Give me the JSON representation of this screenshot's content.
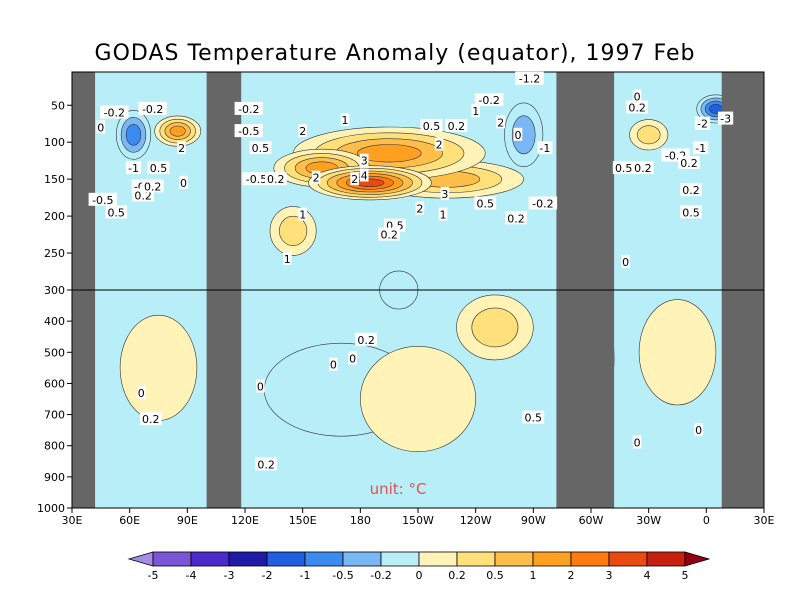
{
  "chart_data": {
    "type": "heatmap",
    "title": "GODAS Temperature Anomaly (equator), 1997 Feb",
    "unit_label": "unit: °C",
    "x_ticks": [
      "30E",
      "60E",
      "90E",
      "120E",
      "150E",
      "180",
      "150W",
      "120W",
      "90W",
      "60W",
      "30W",
      "0",
      "30E"
    ],
    "x_range_deg_east": [
      30,
      390
    ],
    "y_ticks": [
      "50",
      "100",
      "150",
      "200",
      "250",
      "300",
      "400",
      "500",
      "600",
      "700",
      "800",
      "900",
      "1000"
    ],
    "y_upper_range_m": [
      5,
      300
    ],
    "y_lower_range_m": [
      300,
      1000
    ],
    "land_mask_ranges": [
      [
        30,
        42
      ],
      [
        100,
        118
      ],
      [
        282,
        312
      ],
      [
        368,
        390
      ]
    ],
    "colorbar": {
      "levels": [
        "-5",
        "-4",
        "-3",
        "-2",
        "-1",
        "-0.5",
        "-0.2",
        "0",
        "0.2",
        "0.5",
        "1",
        "2",
        "3",
        "4",
        "5"
      ],
      "colors": [
        "#a58de6",
        "#7a55d6",
        "#4b2bc9",
        "#1e1aa8",
        "#1f5fe0",
        "#3b8af0",
        "#7ab8f5",
        "#b8eef8",
        "#fff3b8",
        "#ffe07a",
        "#ffbe4a",
        "#ffa020",
        "#ff7a10",
        "#e84a10",
        "#c8200f",
        "#900010"
      ]
    },
    "anomalies": [
      {
        "lon": 185,
        "depth": 155,
        "value": 4.5,
        "rx": 32,
        "ry": 30
      },
      {
        "lon": 195,
        "depth": 115,
        "value": 2.5,
        "rx": 50,
        "ry": 55
      },
      {
        "lon": 160,
        "depth": 135,
        "value": 2.5,
        "rx": 25,
        "ry": 35
      },
      {
        "lon": 225,
        "depth": 150,
        "value": 1.5,
        "rx": 40,
        "ry": 35
      },
      {
        "lon": 145,
        "depth": 220,
        "value": 0.8,
        "rx": 12,
        "ry": 50
      },
      {
        "lon": 85,
        "depth": 85,
        "value": 2.5,
        "rx": 12,
        "ry": 25
      },
      {
        "lon": 62,
        "depth": 90,
        "value": -1.5,
        "rx": 9,
        "ry": 50
      },
      {
        "lon": 365,
        "depth": 55,
        "value": -2.8,
        "rx": 10,
        "ry": 22
      },
      {
        "lon": 330,
        "depth": 90,
        "value": 0.9,
        "rx": 10,
        "ry": 25
      },
      {
        "lon": 265,
        "depth": 90,
        "value": -0.9,
        "rx": 10,
        "ry": 70
      },
      {
        "lon": 200,
        "depth": 300,
        "value": -0.3,
        "rx": 10,
        "ry": 50
      },
      {
        "lon": 250,
        "depth": 420,
        "value": 0.7,
        "rx": 20,
        "ry": 170
      },
      {
        "lon": 170,
        "depth": 620,
        "value": -0.3,
        "rx": 40,
        "ry": 260
      },
      {
        "lon": 300,
        "depth": 520,
        "value": -0.3,
        "rx": 12,
        "ry": 300
      },
      {
        "lon": 345,
        "depth": 500,
        "value": 0.3,
        "rx": 20,
        "ry": 300
      },
      {
        "lon": 75,
        "depth": 550,
        "value": 0.3,
        "rx": 20,
        "ry": 300
      },
      {
        "lon": 210,
        "depth": 650,
        "value": 0.3,
        "rx": 30,
        "ry": 300
      }
    ],
    "contour_labels": [
      {
        "text": "-0.2",
        "lon": 52,
        "depth": 60
      },
      {
        "text": "-0.2",
        "lon": 72,
        "depth": 55
      },
      {
        "text": "0",
        "lon": 45,
        "depth": 80
      },
      {
        "text": "-1",
        "lon": 62,
        "depth": 135
      },
      {
        "text": "-0",
        "lon": 65,
        "depth": 160
      },
      {
        "text": "-0.5",
        "lon": 46,
        "depth": 178
      },
      {
        "text": "0.2",
        "lon": 67,
        "depth": 172
      },
      {
        "text": "0.5",
        "lon": 53,
        "depth": 195
      },
      {
        "text": "2",
        "lon": 87,
        "depth": 108
      },
      {
        "text": "0.5",
        "lon": 75,
        "depth": 135
      },
      {
        "text": "0.2",
        "lon": 72,
        "depth": 160
      },
      {
        "text": "0",
        "lon": 88,
        "depth": 155
      },
      {
        "text": "-0.2",
        "lon": 122,
        "depth": 55
      },
      {
        "text": "-0.5",
        "lon": 122,
        "depth": 85
      },
      {
        "text": "0.5",
        "lon": 128,
        "depth": 108
      },
      {
        "text": "-0.5",
        "lon": 126,
        "depth": 150
      },
      {
        "text": "2",
        "lon": 150,
        "depth": 85
      },
      {
        "text": "1",
        "lon": 172,
        "depth": 70
      },
      {
        "text": "3",
        "lon": 182,
        "depth": 125
      },
      {
        "text": "4",
        "lon": 182,
        "depth": 145
      },
      {
        "text": "2",
        "lon": 157,
        "depth": 148
      },
      {
        "text": "2",
        "lon": 177,
        "depth": 150
      },
      {
        "text": "0.2",
        "lon": 136,
        "depth": 150
      },
      {
        "text": "1",
        "lon": 150,
        "depth": 198
      },
      {
        "text": "2",
        "lon": 211,
        "depth": 190
      },
      {
        "text": "3",
        "lon": 224,
        "depth": 170
      },
      {
        "text": "1",
        "lon": 223,
        "depth": 198
      },
      {
        "text": "0.5",
        "lon": 198,
        "depth": 213
      },
      {
        "text": "0.2",
        "lon": 195,
        "depth": 225
      },
      {
        "text": "1",
        "lon": 142,
        "depth": 258
      },
      {
        "text": "0.5",
        "lon": 217,
        "depth": 78
      },
      {
        "text": "0.2",
        "lon": 230,
        "depth": 78
      },
      {
        "text": "2",
        "lon": 221,
        "depth": 103
      },
      {
        "text": "1",
        "lon": 240,
        "depth": 58
      },
      {
        "text": "2",
        "lon": 253,
        "depth": 73
      },
      {
        "text": "-0.2",
        "lon": 247,
        "depth": 43
      },
      {
        "text": "-1.2",
        "lon": 268,
        "depth": 14
      },
      {
        "text": "0",
        "lon": 262,
        "depth": 90
      },
      {
        "text": "-1",
        "lon": 276,
        "depth": 108
      },
      {
        "text": "0.5",
        "lon": 245,
        "depth": 183
      },
      {
        "text": "0.2",
        "lon": 261,
        "depth": 203
      },
      {
        "text": "-0.2",
        "lon": 275,
        "depth": 183
      },
      {
        "text": "0",
        "lon": 324,
        "depth": 38
      },
      {
        "text": "0.2",
        "lon": 324,
        "depth": 53
      },
      {
        "text": "-2",
        "lon": 358,
        "depth": 75
      },
      {
        "text": "-3",
        "lon": 370,
        "depth": 68
      },
      {
        "text": "-1",
        "lon": 357,
        "depth": 108
      },
      {
        "text": "-0.2",
        "lon": 344,
        "depth": 118
      },
      {
        "text": "0.2",
        "lon": 351,
        "depth": 128
      },
      {
        "text": "0.5",
        "lon": 317,
        "depth": 135
      },
      {
        "text": "0.2",
        "lon": 327,
        "depth": 135
      },
      {
        "text": "0.2",
        "lon": 352,
        "depth": 165
      },
      {
        "text": "0.5",
        "lon": 352,
        "depth": 195
      },
      {
        "text": "0",
        "lon": 318,
        "depth": 262
      },
      {
        "text": "0.2",
        "lon": 183,
        "depth": 460
      },
      {
        "text": "0",
        "lon": 176,
        "depth": 520
      },
      {
        "text": "0",
        "lon": 166,
        "depth": 540
      },
      {
        "text": "0",
        "lon": 128,
        "depth": 610
      },
      {
        "text": "0",
        "lon": 66,
        "depth": 630
      },
      {
        "text": "0.2",
        "lon": 71,
        "depth": 715
      },
      {
        "text": "0.2",
        "lon": 131,
        "depth": 860
      },
      {
        "text": "0.5",
        "lon": 270,
        "depth": 710
      },
      {
        "text": "0",
        "lon": 356,
        "depth": 750
      },
      {
        "text": "0",
        "lon": 324,
        "depth": 790
      }
    ]
  }
}
